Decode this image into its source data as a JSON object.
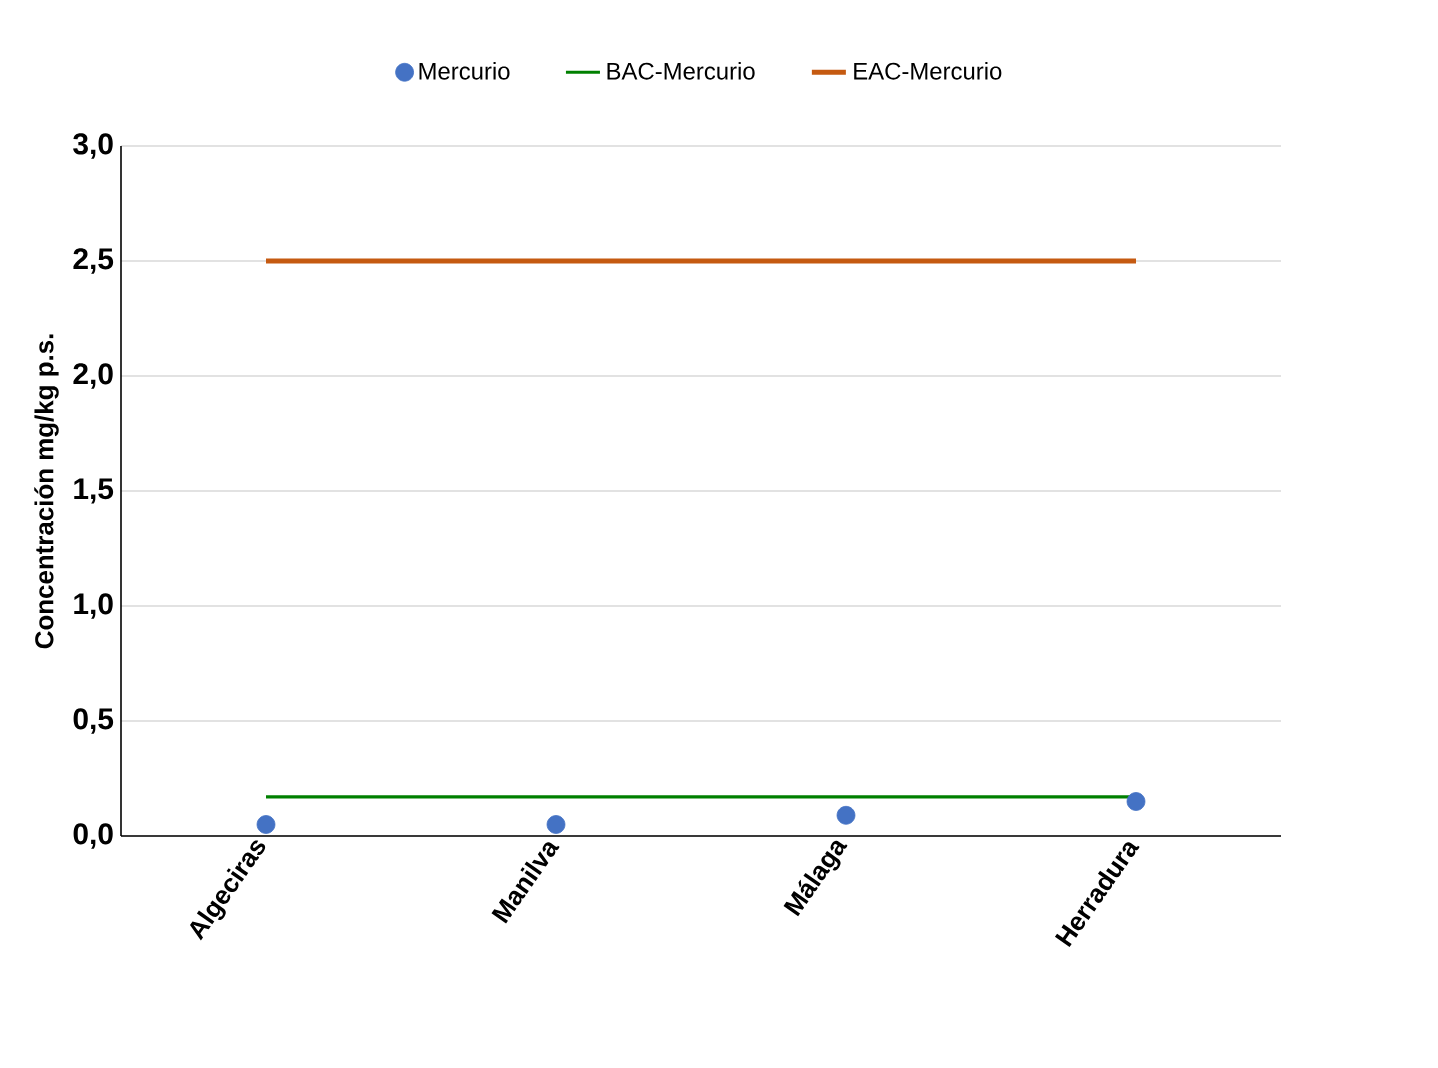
{
  "chart_data": {
    "type": "scatter",
    "ylabel": "Concentración mg/kg p.s.",
    "categories": [
      "Algeciras",
      "Manilva",
      "Málaga",
      "Herradura"
    ],
    "series": [
      {
        "name": "Mercurio",
        "marker": "circle",
        "color": "#4472c4",
        "values": [
          0.05,
          0.05,
          0.09,
          0.15
        ]
      },
      {
        "name": "BAC-Mercurio",
        "type": "line",
        "marker": "none",
        "color": "#008000",
        "values": [
          0.17,
          0.17,
          0.17,
          0.17
        ]
      },
      {
        "name": "EAC-Mercurio",
        "type": "line",
        "marker": "none",
        "color": "#c55a11",
        "values": [
          2.5,
          2.5,
          2.5,
          2.5
        ]
      }
    ],
    "ylim": [
      0,
      3
    ],
    "yticks": [
      {
        "value": 0,
        "label": "0,0"
      },
      {
        "value": 0.5,
        "label": "0,5"
      },
      {
        "value": 1,
        "label": "1,0"
      },
      {
        "value": 1.5,
        "label": "1,5"
      },
      {
        "value": 2,
        "label": "2,0"
      },
      {
        "value": 2.5,
        "label": "2,5"
      },
      {
        "value": 3,
        "label": "3,0"
      }
    ],
    "grid": "y",
    "legend": "top"
  }
}
